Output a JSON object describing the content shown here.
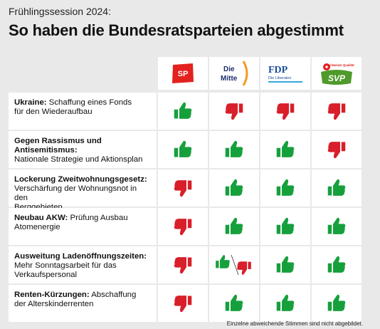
{
  "kicker": "Frühlingssession 2024:",
  "title": "So haben die Bundesratsparteien abgestimmt",
  "parties": [
    {
      "id": "sp",
      "label": "SP",
      "color": "#e3211e"
    },
    {
      "id": "mitte",
      "label_line1": "Die",
      "label_line2": "Mitte",
      "color": "#1c2c6c",
      "accent": "#f39a21"
    },
    {
      "id": "fdp",
      "label": "FDP",
      "sublabel": "Die Liberalen",
      "color": "#1a4c9c"
    },
    {
      "id": "svp",
      "label": "SVP",
      "sublabel": "Schweizer Qualität",
      "color": "#4e9a2b"
    }
  ],
  "colors": {
    "yes": "#16a03c",
    "no": "#d81f2a"
  },
  "rows": [
    {
      "bold": "Ukraine:",
      "rest_line1": " Schaffung eines Fonds",
      "rest_line2": "für den Wiederaufbau",
      "rest_line3": "",
      "votes": [
        "yes",
        "no",
        "no",
        "no"
      ]
    },
    {
      "bold": "Gegen Rassismus und Antisemitismus:",
      "rest_line1": "",
      "rest_line2": "Nationale Strategie und Aktionsplan",
      "rest_line3": "",
      "votes": [
        "yes",
        "yes",
        "yes",
        "no"
      ]
    },
    {
      "bold": "Lockerung Zweitwohnungsgesetz:",
      "rest_line1": "",
      "rest_line2": "Verschärfung der Wohnungsnot in den",
      "rest_line3": "Berggebieten",
      "votes": [
        "no",
        "yes",
        "yes",
        "yes"
      ]
    },
    {
      "bold": "Neubau AKW:",
      "rest_line1": " Prüfung Ausbau",
      "rest_line2": "Atomenergie",
      "rest_line3": "",
      "votes": [
        "no",
        "yes",
        "yes",
        "yes"
      ]
    },
    {
      "bold": "Ausweitung Ladenöffnungszeiten:",
      "rest_line1": "",
      "rest_line2": "Mehr Sonntagsarbeit für das",
      "rest_line3": "Verkaufspersonal",
      "votes": [
        "no",
        "split",
        "yes",
        "yes"
      ]
    },
    {
      "bold": "Renten-Kürzungen:",
      "rest_line1": " Abschaffung",
      "rest_line2": "der Alterskinderrenten",
      "rest_line3": "",
      "votes": [
        "no",
        "yes",
        "yes",
        "yes"
      ]
    }
  ],
  "footnote": "Einzelne abweichende Stimmen sind nicht abgebildet."
}
